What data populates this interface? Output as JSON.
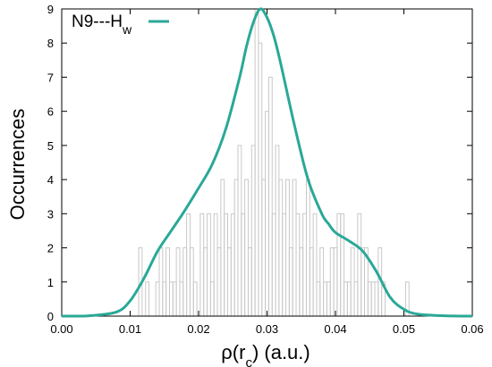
{
  "chart_data": {
    "type": "bar",
    "title": "",
    "xlabel": "ρ(r",
    "xlabel_sub": "c",
    "xlabel_rest": ") (a.u.)",
    "ylabel": "Occurrences",
    "xlim": [
      0,
      0.06
    ],
    "ylim": [
      0,
      9
    ],
    "xticks": [
      "0.00",
      "0.01",
      "0.02",
      "0.03",
      "0.04",
      "0.05",
      "0.06"
    ],
    "yticks": [
      "0",
      "1",
      "2",
      "3",
      "4",
      "5",
      "6",
      "7",
      "8",
      "9"
    ],
    "histogram_color": "#c8c8c8",
    "curve_color": "#2aa897",
    "legend": {
      "label": "N9---H",
      "label_sub": "w",
      "position": "top-left"
    },
    "histogram": {
      "bin_width": 0.0005,
      "x": [
        0.0115,
        0.0125,
        0.014,
        0.0145,
        0.015,
        0.0155,
        0.016,
        0.0165,
        0.017,
        0.0175,
        0.018,
        0.0185,
        0.019,
        0.0195,
        0.0205,
        0.021,
        0.0215,
        0.022,
        0.0225,
        0.023,
        0.0235,
        0.024,
        0.0245,
        0.025,
        0.0255,
        0.026,
        0.0265,
        0.027,
        0.0275,
        0.028,
        0.0285,
        0.029,
        0.0295,
        0.03,
        0.0305,
        0.031,
        0.0315,
        0.032,
        0.0325,
        0.033,
        0.0335,
        0.034,
        0.0345,
        0.035,
        0.0355,
        0.036,
        0.0365,
        0.037,
        0.0375,
        0.038,
        0.0385,
        0.039,
        0.0395,
        0.04,
        0.0405,
        0.041,
        0.0415,
        0.042,
        0.0425,
        0.043,
        0.0435,
        0.044,
        0.0445,
        0.045,
        0.0455,
        0.046,
        0.0465,
        0.047,
        0.0505
      ],
      "values": [
        2,
        1,
        1,
        2,
        1,
        2,
        1,
        1,
        2,
        1,
        2,
        3,
        2,
        1,
        3,
        2,
        3,
        1,
        3,
        2,
        4,
        3,
        2,
        3,
        4,
        5,
        3,
        4,
        2,
        5,
        9,
        8,
        4,
        6,
        7,
        3,
        5,
        4,
        3,
        4,
        2,
        4,
        3,
        2,
        3,
        4,
        2,
        3,
        1,
        2,
        1,
        1,
        2,
        2,
        3,
        3,
        1,
        1,
        2,
        1,
        3,
        2,
        2,
        1,
        1,
        1,
        2,
        1,
        1
      ]
    },
    "curve": {
      "x": [
        0.0,
        0.004,
        0.008,
        0.01,
        0.012,
        0.014,
        0.016,
        0.018,
        0.02,
        0.022,
        0.024,
        0.026,
        0.027,
        0.028,
        0.029,
        0.03,
        0.031,
        0.032,
        0.034,
        0.036,
        0.038,
        0.039,
        0.04,
        0.042,
        0.044,
        0.046,
        0.048,
        0.05,
        0.052,
        0.056,
        0.06
      ],
      "y": [
        0.0,
        0.01,
        0.12,
        0.45,
        1.1,
        1.9,
        2.5,
        3.1,
        3.75,
        4.45,
        5.5,
        7.0,
        7.9,
        8.6,
        9.0,
        8.75,
        8.2,
        7.4,
        5.6,
        4.0,
        3.0,
        2.7,
        2.45,
        2.2,
        1.9,
        1.3,
        0.55,
        0.2,
        0.06,
        0.01,
        0.0
      ]
    }
  }
}
